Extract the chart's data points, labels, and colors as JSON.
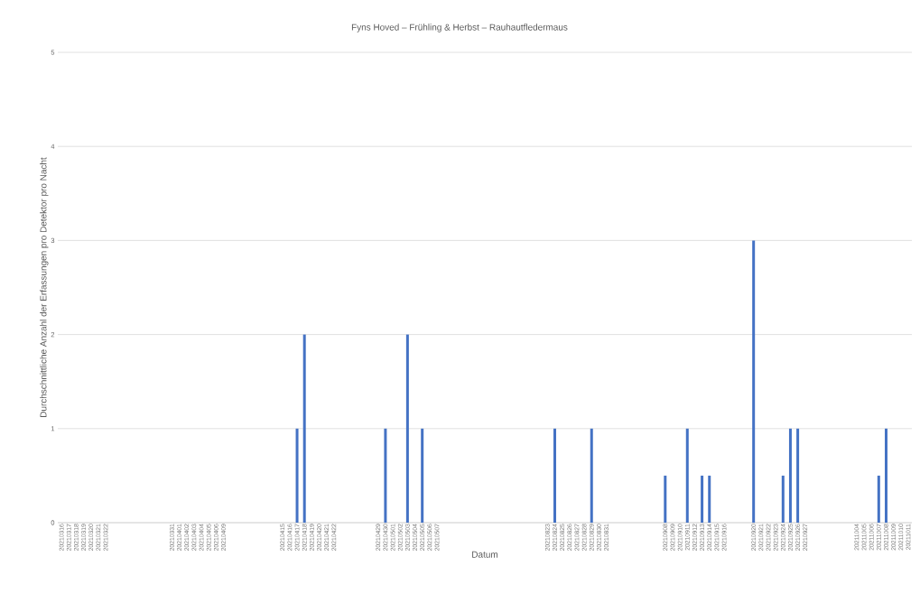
{
  "chart_data": {
    "type": "bar",
    "title": "Fyns Hoved – Frühling & Herbst – Rauhautfledermaus",
    "xlabel": "Datum",
    "ylabel": "Durchschnittliche Anzahl der Erfassungen pro Detektor pro Nacht",
    "categories": [
      "20210316",
      "20210317",
      "20210318",
      "20210319",
      "20210320",
      "20210321",
      "20210322",
      null,
      null,
      null,
      null,
      null,
      null,
      null,
      null,
      "20210331",
      "20210401",
      "20210402",
      "20210403",
      "20210404",
      "20210405",
      "20210406",
      "20210409",
      null,
      null,
      null,
      null,
      null,
      null,
      null,
      "20210415",
      "20210416",
      "20210417",
      "20210418",
      "20210419",
      "20210420",
      "20210421",
      "20210422",
      null,
      null,
      null,
      null,
      null,
      "20210429",
      "20210430",
      "20210501",
      "20210502",
      "20210503",
      "20210504",
      "20210505",
      "20210506",
      "20210507",
      null,
      null,
      null,
      null,
      null,
      null,
      null,
      null,
      null,
      null,
      null,
      null,
      null,
      null,
      "20210823",
      "20210824",
      "20210825",
      "20210826",
      "20210827",
      "20210828",
      "20210829",
      "20210830",
      "20210831",
      null,
      null,
      null,
      null,
      null,
      null,
      null,
      "20210908",
      "20210909",
      "20210910",
      "20210911",
      "20210912",
      "20210913",
      "20210914",
      "20210915",
      "20210916",
      null,
      null,
      null,
      "20210920",
      "20210921",
      "20210922",
      "20210923",
      "20210924",
      "20210925",
      "20210926",
      "20210927",
      null,
      null,
      null,
      null,
      null,
      null,
      "20211004",
      "20211005",
      "20211006",
      "20211007",
      "20211008",
      "20211009",
      "20211010",
      "20211011"
    ],
    "values": [
      0,
      0,
      0,
      0,
      0,
      0,
      0,
      null,
      null,
      null,
      null,
      null,
      null,
      null,
      null,
      0,
      0,
      0,
      0,
      0,
      0,
      0,
      0,
      null,
      null,
      null,
      null,
      null,
      null,
      null,
      0,
      0,
      1,
      2,
      0,
      0,
      0,
      0,
      null,
      null,
      null,
      null,
      null,
      0,
      1,
      0,
      0,
      2,
      0,
      1,
      0,
      0,
      null,
      null,
      null,
      null,
      null,
      null,
      null,
      null,
      null,
      null,
      null,
      null,
      null,
      null,
      0,
      1,
      0,
      0,
      0,
      0,
      1,
      0,
      0,
      null,
      null,
      null,
      null,
      null,
      null,
      null,
      0.5,
      0,
      0,
      1,
      0,
      0.5,
      0.5,
      0,
      0,
      null,
      null,
      null,
      3,
      0,
      0,
      0,
      0.5,
      1,
      1,
      0,
      null,
      null,
      null,
      null,
      null,
      null,
      0,
      0,
      0,
      0.5,
      1,
      0,
      0,
      0
    ],
    "color": "#4472c4",
    "ylim": [
      0,
      5
    ],
    "yticks": [
      0,
      1,
      2,
      3,
      4,
      5
    ],
    "grid": "y"
  }
}
